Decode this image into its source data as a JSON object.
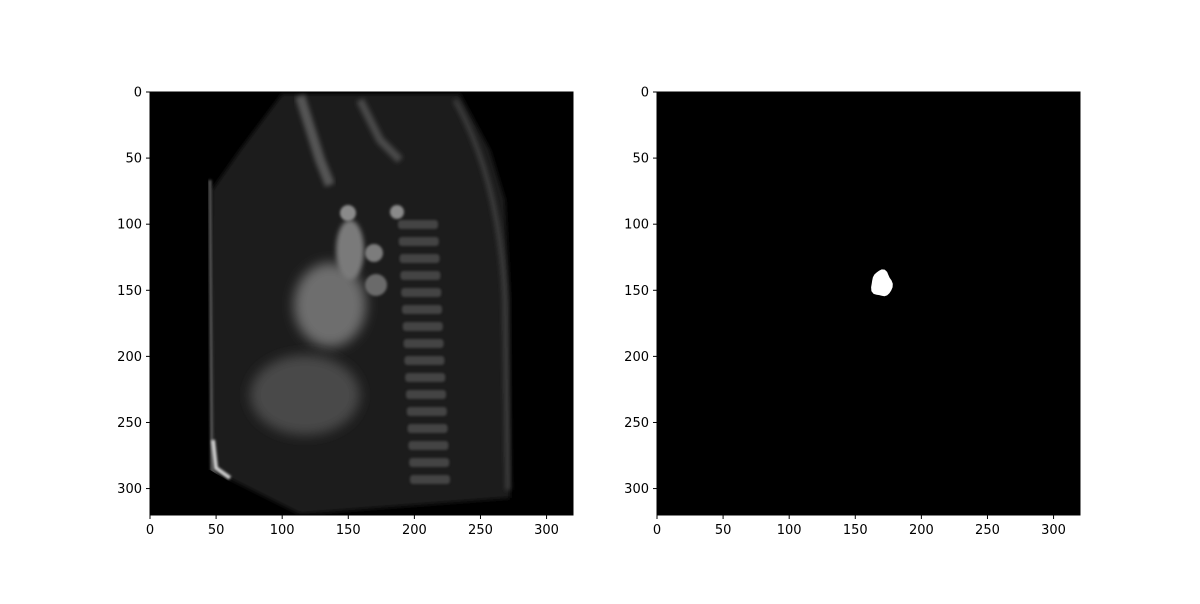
{
  "chart_data": [
    {
      "type": "image",
      "xlim": [
        0,
        320
      ],
      "ylim": [
        320,
        0
      ],
      "x_ticks": [
        "0",
        "50",
        "100",
        "150",
        "200",
        "250",
        "300"
      ],
      "y_ticks": [
        "0",
        "50",
        "100",
        "150",
        "200",
        "250",
        "300"
      ],
      "content": "grayscale MRI sagittal slice"
    },
    {
      "type": "image",
      "xlim": [
        0,
        320
      ],
      "ylim": [
        320,
        0
      ],
      "x_ticks": [
        "0",
        "50",
        "100",
        "150",
        "200",
        "250",
        "300"
      ],
      "y_ticks": [
        "0",
        "50",
        "100",
        "150",
        "200",
        "250",
        "300"
      ],
      "content": "binary segmentation mask",
      "mask_blob": {
        "x_center": 170,
        "y_center": 145,
        "x_radius": 8,
        "y_radius": 10
      }
    }
  ]
}
